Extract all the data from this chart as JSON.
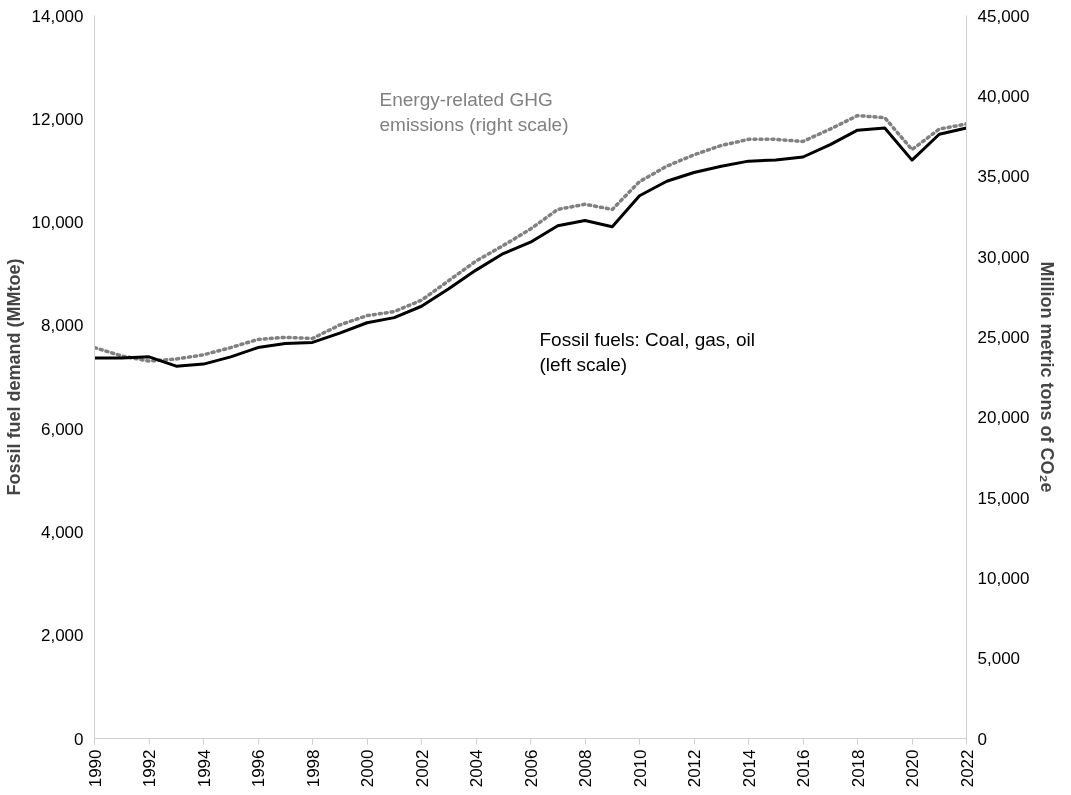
{
  "chart_data": {
    "type": "line",
    "ylabel": "Fossil fuel demand (MMtoe)",
    "y2label": "Million metric tons of CO₂e",
    "x": [
      1990,
      1991,
      1992,
      1993,
      1994,
      1995,
      1996,
      1997,
      1998,
      1999,
      2000,
      2001,
      2002,
      2003,
      2004,
      2005,
      2006,
      2007,
      2008,
      2009,
      2010,
      2011,
      2012,
      2013,
      2014,
      2015,
      2016,
      2017,
      2018,
      2019,
      2020,
      2021,
      2022
    ],
    "xlim": [
      1990,
      2022
    ],
    "xticks": [
      1990,
      1992,
      1994,
      1996,
      1998,
      2000,
      2002,
      2004,
      2006,
      2008,
      2010,
      2012,
      2014,
      2016,
      2018,
      2020,
      2022
    ],
    "ylim": [
      0,
      14000
    ],
    "yticks": [
      {
        "value": 0,
        "label": "0"
      },
      {
        "value": 2000,
        "label": "2,000"
      },
      {
        "value": 4000,
        "label": "4,000"
      },
      {
        "value": 6000,
        "label": "6,000"
      },
      {
        "value": 8000,
        "label": "8,000"
      },
      {
        "value": 10000,
        "label": "10,000"
      },
      {
        "value": 12000,
        "label": "12,000"
      },
      {
        "value": 14000,
        "label": "14,000"
      }
    ],
    "y2lim": [
      0,
      45000
    ],
    "y2ticks": [
      {
        "value": 0,
        "label": "0"
      },
      {
        "value": 5000,
        "label": "5,000"
      },
      {
        "value": 10000,
        "label": "10,000"
      },
      {
        "value": 15000,
        "label": "15,000"
      },
      {
        "value": 20000,
        "label": "20,000"
      },
      {
        "value": 25000,
        "label": "25,000"
      },
      {
        "value": 30000,
        "label": "30,000"
      },
      {
        "value": 35000,
        "label": "35,000"
      },
      {
        "value": 40000,
        "label": "40,000"
      },
      {
        "value": 45000,
        "label": "45,000"
      }
    ],
    "grid": false,
    "series": [
      {
        "name": "Energy-related GHG\nemissions (right scale)",
        "color": "#808080",
        "axis": "y2",
        "line_style": "dotted",
        "values": [
          24330,
          23810,
          23490,
          23620,
          23880,
          24330,
          24840,
          24970,
          24900,
          25740,
          26320,
          26570,
          27280,
          28500,
          29720,
          30680,
          31710,
          32930,
          33250,
          32930,
          34660,
          35620,
          36330,
          36910,
          37290,
          37290,
          37160,
          37930,
          38770,
          38640,
          36650,
          37930,
          38250
        ]
      },
      {
        "name": "Fossil fuels: Coal, gas, oil\n(left scale)",
        "color": "#000000",
        "line_style": "solid",
        "values": [
          7370,
          7370,
          7390,
          7210,
          7250,
          7390,
          7570,
          7650,
          7670,
          7850,
          8050,
          8150,
          8370,
          8710,
          9070,
          9390,
          9610,
          9930,
          10030,
          9910,
          10510,
          10790,
          10960,
          11080,
          11180,
          11200,
          11260,
          11500,
          11780,
          11820,
          11200,
          11700,
          11820
        ]
      }
    ]
  }
}
